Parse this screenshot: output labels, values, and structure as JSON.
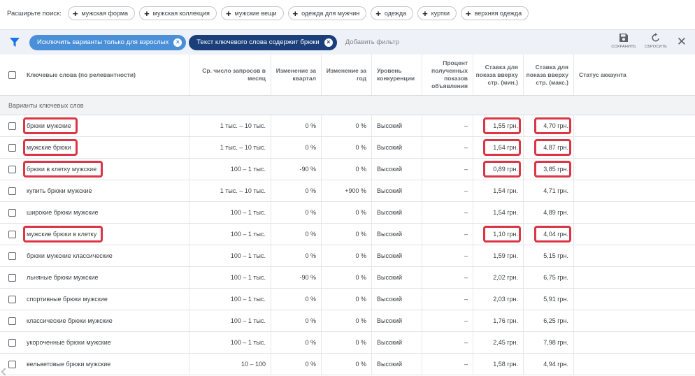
{
  "expand": {
    "label": "Расширьте поиск:",
    "chips": [
      "мужская форма",
      "мужская коллекция",
      "мужские вещи",
      "одежда для мужчин",
      "одежда",
      "куртки",
      "верхняя одежда"
    ]
  },
  "filters": {
    "chips": [
      "Исключить варианты только для взрослых",
      "Текст ключевого слова содержит брюки"
    ],
    "add_label": "Добавить фильтр",
    "save_label": "СОХРАНИТЬ",
    "reset_label": "СБРОСИТЬ"
  },
  "columns": {
    "keyword": "Ключевые слова (по релевантности)",
    "searches": "Ср. число запросов в месяц",
    "quarter": "Изменение за квартал",
    "year": "Изменение за год",
    "competition": "Уровень конкуренции",
    "impressions": "Процент полученных показов объявления",
    "bid_low": "Ставка для показа вверху стр. (мин.)",
    "bid_high": "Ставка для показа вверху стр. (макс.)",
    "status": "Статус аккаунта"
  },
  "group_label": "Варианты ключевых слов",
  "rows": [
    {
      "keyword": "брюки мужские",
      "searches": "1 тыс. – 10 тыс.",
      "quarter": "0 %",
      "year": "0 %",
      "competition": "Высокий",
      "impressions": "–",
      "bid_low": "1,55 грн.",
      "bid_high": "4,70 грн.",
      "highlighted": true
    },
    {
      "keyword": "мужские брюки",
      "searches": "1 тыс. – 10 тыс.",
      "quarter": "0 %",
      "year": "0 %",
      "competition": "Высокий",
      "impressions": "–",
      "bid_low": "1,64 грн.",
      "bid_high": "4,87 грн.",
      "highlighted": true
    },
    {
      "keyword": "брюки в клетку мужские",
      "searches": "100 – 1 тыс.",
      "quarter": "-90 %",
      "year": "0 %",
      "competition": "Высокий",
      "impressions": "–",
      "bid_low": "0,89 грн.",
      "bid_high": "3,85 грн.",
      "highlighted": true
    },
    {
      "keyword": "купить брюки мужские",
      "searches": "1 тыс. – 10 тыс.",
      "quarter": "0 %",
      "year": "+900 %",
      "competition": "Высокий",
      "impressions": "–",
      "bid_low": "1,54 грн.",
      "bid_high": "4,71 грн.",
      "highlighted": false
    },
    {
      "keyword": "широкие брюки мужские",
      "searches": "100 – 1 тыс.",
      "quarter": "0 %",
      "year": "0 %",
      "competition": "Высокий",
      "impressions": "–",
      "bid_low": "1,54 грн.",
      "bid_high": "4,89 грн.",
      "highlighted": false
    },
    {
      "keyword": "мужские брюки в клетку",
      "searches": "100 – 1 тыс.",
      "quarter": "0 %",
      "year": "0 %",
      "competition": "Высокий",
      "impressions": "–",
      "bid_low": "1,10 грн.",
      "bid_high": "4,04 грн.",
      "highlighted": true
    },
    {
      "keyword": "брюки мужские классические",
      "searches": "100 – 1 тыс.",
      "quarter": "0 %",
      "year": "0 %",
      "competition": "Высокий",
      "impressions": "–",
      "bid_low": "1,59 грн.",
      "bid_high": "5,15 грн.",
      "highlighted": false
    },
    {
      "keyword": "льняные брюки мужские",
      "searches": "100 – 1 тыс.",
      "quarter": "-90 %",
      "year": "0 %",
      "competition": "Высокий",
      "impressions": "–",
      "bid_low": "2,02 грн.",
      "bid_high": "6,75 грн.",
      "highlighted": false
    },
    {
      "keyword": "спортивные брюки мужские",
      "searches": "100 – 1 тыс.",
      "quarter": "0 %",
      "year": "0 %",
      "competition": "Высокий",
      "impressions": "–",
      "bid_low": "2,03 грн.",
      "bid_high": "5,91 грн.",
      "highlighted": false
    },
    {
      "keyword": "классические брюки мужские",
      "searches": "100 – 1 тыс.",
      "quarter": "0 %",
      "year": "0 %",
      "competition": "Высокий",
      "impressions": "–",
      "bid_low": "1,76 грн.",
      "bid_high": "6,25 грн.",
      "highlighted": false
    },
    {
      "keyword": "укороченные брюки мужские",
      "searches": "100 – 1 тыс.",
      "quarter": "0 %",
      "year": "0 %",
      "competition": "Высокий",
      "impressions": "–",
      "bid_low": "2,45 грн.",
      "bid_high": "7,98 грн.",
      "highlighted": false
    },
    {
      "keyword": "вельветовые брюки мужские",
      "searches": "10 – 100",
      "quarter": "0 %",
      "year": "0 %",
      "competition": "Высокий",
      "impressions": "–",
      "bid_low": "1,58 грн.",
      "bid_high": "4,94 грн.",
      "highlighted": false
    }
  ],
  "colors": {
    "chip_light": "#4a90d9",
    "chip_dark": "#1a3f7a",
    "highlight": "#dc3545",
    "filter_bar_bg": "#eef1f8"
  }
}
